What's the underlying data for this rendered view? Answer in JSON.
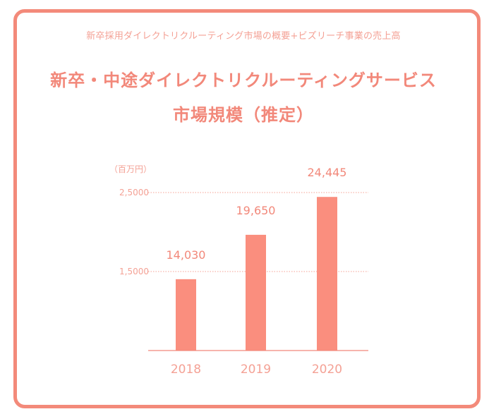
{
  "header": {
    "subtitle": "新卒採用ダイレクトリクルーティング市場の概要+ビズリーチ事業の売上高",
    "title_line1": "新卒・中途ダイレクトリクルーティングサービス",
    "title_line2": "市場規模（推定）"
  },
  "colors": {
    "accent": "#f38a7a",
    "bar": "#fa8e7e",
    "label": "#f2887a",
    "tick": "#f4a195"
  },
  "chart_data": {
    "type": "bar",
    "title": "新卒・中途ダイレクトリクルーティングサービス 市場規模（推定）",
    "unit_label": "（百万円）",
    "categories": [
      "2018",
      "2019",
      "2020"
    ],
    "values": [
      14030,
      19650,
      24445
    ],
    "value_labels": [
      "14,030",
      "19,650",
      "24,445"
    ],
    "gridlines": [
      {
        "value": 15000,
        "label": "1,5000"
      },
      {
        "value": 25000,
        "label": "2,5000"
      }
    ],
    "ylim": [
      5000,
      25000
    ],
    "xlabel": "",
    "ylabel": "百万円"
  }
}
